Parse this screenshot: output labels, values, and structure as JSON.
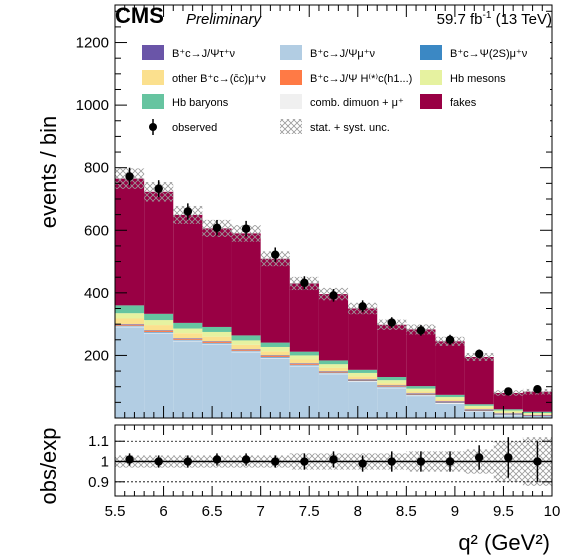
{
  "header": {
    "experiment": "CMS",
    "status": "Preliminary",
    "lumi_value": "59.7 fb",
    "lumi_exp": "-1",
    "lumi_energy": " (13 TeV)"
  },
  "colors": {
    "fakes": "#990044",
    "hb_mesons": "#e6f2a0",
    "hb_baryons": "#66c4a0",
    "bc_jpsimu": "#b2cde3",
    "other_cc": "#fbe08e",
    "comb_dimuon": "#f0f0f0",
    "bc_jpsitau": "#6a55a8",
    "bc_psi2s": "#3b88c4",
    "bc_hc": "#ff7a45"
  },
  "legend": {
    "items": [
      {
        "key": "bc_jpsitau",
        "label": "B⁺c→J/Ψτ⁺ν"
      },
      {
        "key": "bc_jpsimu",
        "label": "B⁺c→J/Ψμ⁺ν"
      },
      {
        "key": "bc_psi2s",
        "label": "B⁺c→Ψ(2S)μ⁺ν"
      },
      {
        "key": "other_cc",
        "label": "other B⁺c→(c̄c)μ⁺ν"
      },
      {
        "key": "bc_hc",
        "label": "B⁺c→J/Ψ H⁽*⁾c(h1...)"
      },
      {
        "key": "hb_mesons",
        "label": "Hb mesons"
      },
      {
        "key": "hb_baryons",
        "label": "Hb baryons"
      },
      {
        "key": "comb_dimuon",
        "label": "comb. dimuon + μ⁺"
      },
      {
        "key": "fakes",
        "label": "fakes"
      },
      {
        "key": "observed",
        "label": "observed"
      },
      {
        "key": "unc",
        "label": "stat. + syst. unc."
      }
    ]
  },
  "chart_data": {
    "type": "bar",
    "subtype": "stacked-histogram-with-ratio",
    "xlabel": "q² (GeV²)",
    "ylabel": "events / bin",
    "ratio_ylabel": "obs/exp",
    "xlim": [
      5.5,
      10
    ],
    "ylim": [
      0,
      1320
    ],
    "ratio_ylim": [
      0.83,
      1.18
    ],
    "bin_edges": [
      5.5,
      5.8,
      6.1,
      6.4,
      6.7,
      7.0,
      7.3,
      7.6,
      7.9,
      8.2,
      8.5,
      8.8,
      9.1,
      9.4,
      9.7,
      10.0
    ],
    "x_ticks": [
      "5.5",
      "6",
      "6.5",
      "7",
      "7.5",
      "8",
      "8.5",
      "9",
      "9.5",
      "10"
    ],
    "x_tick_values": [
      5.5,
      6,
      6.5,
      7,
      7.5,
      8,
      8.5,
      9,
      9.5,
      10
    ],
    "y_ticks": [
      "200",
      "400",
      "600",
      "800",
      "1000",
      "1200"
    ],
    "y_tick_values": [
      200,
      400,
      600,
      800,
      1000,
      1200
    ],
    "ratio_ticks": [
      "0.9",
      "1",
      "1.1"
    ],
    "ratio_tick_values": [
      0.9,
      1.0,
      1.1
    ],
    "stack_order": [
      "bc_jpsimu",
      "comb_dimuon",
      "bc_psi2s",
      "bc_hc",
      "bc_jpsitau",
      "other_cc",
      "hb_mesons",
      "hb_baryons",
      "fakes"
    ],
    "series": [
      {
        "name": "B⁺c→J/Ψμ⁺ν",
        "key": "bc_jpsimu",
        "values": [
          290,
          270,
          245,
          235,
          210,
          190,
          165,
          140,
          115,
          95,
          70,
          45,
          20,
          8,
          3
        ]
      },
      {
        "name": "comb. dimuon + μ⁺",
        "key": "comb_dimuon",
        "values": [
          3,
          3,
          3,
          3,
          3,
          3,
          3,
          3,
          3,
          3,
          3,
          3,
          2,
          2,
          2
        ]
      },
      {
        "name": "B⁺c→Ψ(2S)μ⁺ν",
        "key": "bc_psi2s",
        "values": [
          2,
          2,
          2,
          2,
          2,
          2,
          2,
          2,
          2,
          2,
          2,
          2,
          2,
          2,
          2
        ]
      },
      {
        "name": "B⁺c→J/Ψ H⁽*⁾c(h1...)",
        "key": "bc_hc",
        "values": [
          3,
          3,
          3,
          3,
          3,
          3,
          3,
          2,
          2,
          2,
          2,
          2,
          2,
          1,
          1
        ]
      },
      {
        "name": "B⁺c→J/Ψτ⁺ν",
        "key": "bc_jpsitau",
        "values": [
          2,
          2,
          2,
          2,
          2,
          2,
          2,
          2,
          2,
          2,
          2,
          2,
          2,
          2,
          2
        ]
      },
      {
        "name": "other B⁺c→(c̄c)μ⁺ν",
        "key": "other_cc",
        "values": [
          18,
          17,
          16,
          15,
          14,
          13,
          12,
          11,
          9,
          7,
          6,
          5,
          4,
          3,
          2
        ]
      },
      {
        "name": "Hb mesons",
        "key": "hb_mesons",
        "values": [
          17,
          16,
          15,
          15,
          14,
          14,
          13,
          12,
          11,
          10,
          9,
          8,
          7,
          6,
          4
        ]
      },
      {
        "name": "Hb baryons",
        "key": "hb_baryons",
        "values": [
          25,
          20,
          18,
          16,
          16,
          14,
          12,
          12,
          10,
          10,
          8,
          7,
          5,
          4,
          4
        ]
      },
      {
        "name": "fakes",
        "key": "fakes",
        "values": [
          405,
          390,
          345,
          315,
          326,
          268,
          218,
          212,
          196,
          167,
          181,
          171,
          151,
          52,
          64
        ]
      }
    ],
    "observed": {
      "values": [
        772,
        733,
        660,
        608,
        605,
        522,
        432,
        392,
        357,
        305,
        280,
        250,
        205,
        85,
        92
      ],
      "errors": [
        28,
        27,
        26,
        25,
        25,
        23,
        21,
        20,
        19,
        17,
        17,
        16,
        14,
        9,
        10
      ]
    },
    "ratio": {
      "values": [
        1.01,
        1.0,
        1.0,
        1.01,
        1.01,
        1.0,
        1.0,
        1.01,
        0.99,
        1.0,
        1.0,
        1.0,
        1.02,
        1.02,
        1.0
      ],
      "errors": [
        0.03,
        0.03,
        0.03,
        0.03,
        0.03,
        0.03,
        0.04,
        0.04,
        0.04,
        0.05,
        0.05,
        0.05,
        0.06,
        0.1,
        0.1
      ],
      "band": [
        0.03,
        0.03,
        0.03,
        0.03,
        0.03,
        0.03,
        0.04,
        0.04,
        0.04,
        0.04,
        0.05,
        0.05,
        0.06,
        0.1,
        0.12
      ]
    }
  }
}
